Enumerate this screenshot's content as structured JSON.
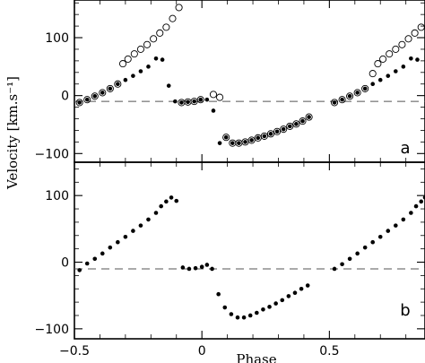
{
  "chart_data": {
    "type": "scatter",
    "xlabel": "Phase",
    "ylabel": "Velocity [km.s⁻¹]",
    "xlim": [
      -0.5,
      0.875
    ],
    "x_ticks": [
      "−0.5",
      "0",
      "0.5"
    ],
    "reference_velocity": -10,
    "panels": [
      {
        "label": "a",
        "ylim": [
          -115,
          165
        ],
        "y_ticks": [
          "−100",
          "0",
          "100"
        ],
        "series": [
          {
            "marker": "filled",
            "points": [
              [
                -0.48,
                -12
              ],
              [
                -0.45,
                -7
              ],
              [
                -0.42,
                -1
              ],
              [
                -0.39,
                5
              ],
              [
                -0.36,
                12
              ],
              [
                -0.33,
                20
              ],
              [
                -0.3,
                27
              ],
              [
                -0.27,
                34
              ],
              [
                -0.24,
                42
              ],
              [
                -0.21,
                50
              ],
              [
                -0.18,
                64
              ],
              [
                -0.155,
                62
              ],
              [
                -0.13,
                17
              ],
              [
                -0.105,
                -10
              ],
              [
                -0.08,
                -12
              ],
              [
                -0.055,
                -11
              ],
              [
                -0.03,
                -10
              ],
              [
                -0.005,
                -7
              ],
              [
                0.02,
                -7
              ],
              [
                0.045,
                -26
              ],
              [
                0.07,
                -82
              ],
              [
                0.095,
                -72
              ],
              [
                0.12,
                -82
              ],
              [
                0.145,
                -82
              ],
              [
                0.17,
                -80
              ],
              [
                0.195,
                -77
              ],
              [
                0.22,
                -73
              ],
              [
                0.245,
                -70
              ],
              [
                0.27,
                -66
              ],
              [
                0.295,
                -62
              ],
              [
                0.32,
                -58
              ],
              [
                0.345,
                -53
              ],
              [
                0.37,
                -49
              ],
              [
                0.395,
                -44
              ],
              [
                0.42,
                -37
              ],
              [
                0.52,
                -12
              ],
              [
                0.55,
                -7
              ],
              [
                0.58,
                -1
              ],
              [
                0.61,
                5
              ],
              [
                0.64,
                12
              ],
              [
                0.67,
                20
              ],
              [
                0.7,
                27
              ],
              [
                0.73,
                34
              ],
              [
                0.76,
                42
              ],
              [
                0.79,
                50
              ],
              [
                0.82,
                64
              ],
              [
                0.845,
                62
              ]
            ]
          },
          {
            "marker": "open",
            "points": [
              [
                -0.48,
                -12
              ],
              [
                -0.45,
                -7
              ],
              [
                -0.42,
                -1
              ],
              [
                -0.39,
                5
              ],
              [
                -0.36,
                12
              ],
              [
                -0.33,
                20
              ],
              [
                -0.31,
                55
              ],
              [
                -0.29,
                63
              ],
              [
                -0.265,
                72
              ],
              [
                -0.24,
                80
              ],
              [
                -0.215,
                88
              ],
              [
                -0.19,
                98
              ],
              [
                -0.165,
                108
              ],
              [
                -0.14,
                118
              ],
              [
                -0.115,
                133
              ],
              [
                -0.09,
                152
              ],
              [
                -0.08,
                -12
              ],
              [
                -0.055,
                -11
              ],
              [
                -0.03,
                -10
              ],
              [
                -0.005,
                -7
              ],
              [
                0.045,
                2
              ],
              [
                0.07,
                -3
              ],
              [
                0.095,
                -72
              ],
              [
                0.12,
                -82
              ],
              [
                0.145,
                -82
              ],
              [
                0.17,
                -80
              ],
              [
                0.195,
                -77
              ],
              [
                0.22,
                -73
              ],
              [
                0.245,
                -70
              ],
              [
                0.27,
                -66
              ],
              [
                0.295,
                -62
              ],
              [
                0.32,
                -58
              ],
              [
                0.345,
                -53
              ],
              [
                0.37,
                -49
              ],
              [
                0.395,
                -44
              ],
              [
                0.42,
                -37
              ],
              [
                0.52,
                -12
              ],
              [
                0.55,
                -7
              ],
              [
                0.58,
                -1
              ],
              [
                0.61,
                5
              ],
              [
                0.64,
                12
              ],
              [
                0.67,
                38
              ],
              [
                0.69,
                55
              ],
              [
                0.71,
                63
              ],
              [
                0.735,
                72
              ],
              [
                0.76,
                80
              ],
              [
                0.785,
                88
              ],
              [
                0.81,
                98
              ],
              [
                0.835,
                108
              ],
              [
                0.86,
                118
              ]
            ]
          }
        ]
      },
      {
        "label": "b",
        "ylim": [
          -115,
          150
        ],
        "y_ticks": [
          "−100",
          "0",
          "100"
        ],
        "series": [
          {
            "marker": "filled",
            "points": [
              [
                -0.48,
                -12
              ],
              [
                -0.45,
                -2
              ],
              [
                -0.42,
                5
              ],
              [
                -0.39,
                13
              ],
              [
                -0.36,
                22
              ],
              [
                -0.33,
                30
              ],
              [
                -0.3,
                38
              ],
              [
                -0.27,
                47
              ],
              [
                -0.24,
                55
              ],
              [
                -0.21,
                64
              ],
              [
                -0.18,
                74
              ],
              [
                -0.16,
                84
              ],
              [
                -0.14,
                91
              ],
              [
                -0.12,
                97
              ],
              [
                -0.1,
                92
              ],
              [
                -0.075,
                -8
              ],
              [
                -0.05,
                -10
              ],
              [
                -0.025,
                -9
              ],
              [
                0.0,
                -7
              ],
              [
                0.02,
                -4
              ],
              [
                0.04,
                -10
              ],
              [
                0.065,
                -48
              ],
              [
                0.09,
                -68
              ],
              [
                0.115,
                -78
              ],
              [
                0.14,
                -83
              ],
              [
                0.165,
                -83
              ],
              [
                0.19,
                -80
              ],
              [
                0.215,
                -76
              ],
              [
                0.24,
                -71
              ],
              [
                0.265,
                -67
              ],
              [
                0.29,
                -62
              ],
              [
                0.315,
                -57
              ],
              [
                0.34,
                -51
              ],
              [
                0.365,
                -46
              ],
              [
                0.39,
                -40
              ],
              [
                0.415,
                -35
              ],
              [
                0.52,
                -10
              ],
              [
                0.55,
                -3
              ],
              [
                0.58,
                5
              ],
              [
                0.61,
                13
              ],
              [
                0.64,
                22
              ],
              [
                0.67,
                30
              ],
              [
                0.7,
                38
              ],
              [
                0.73,
                47
              ],
              [
                0.76,
                55
              ],
              [
                0.79,
                64
              ],
              [
                0.82,
                74
              ],
              [
                0.84,
                84
              ],
              [
                0.86,
                91
              ],
              [
                0.875,
                97
              ]
            ]
          }
        ]
      }
    ]
  }
}
